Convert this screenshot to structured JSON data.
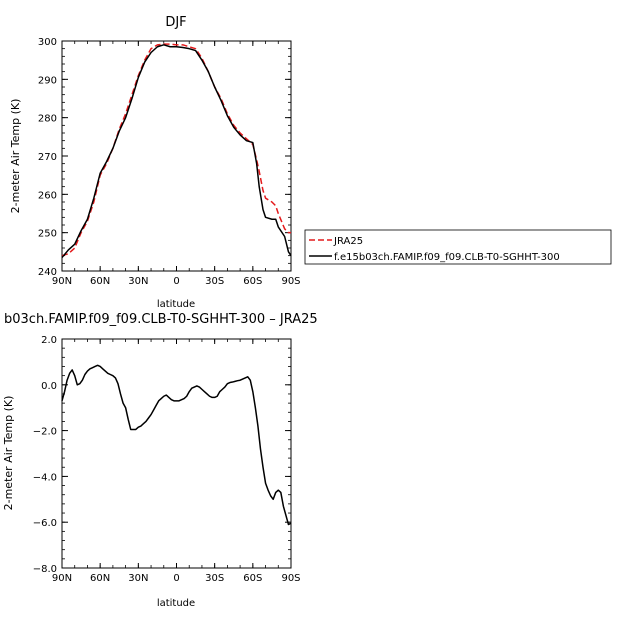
{
  "chart_data": [
    {
      "type": "line",
      "title": "DJF",
      "xlabel": "latitude",
      "ylabel": "2-meter Air Temp (K)",
      "xlim": [
        90,
        -90
      ],
      "ylim": [
        240,
        300
      ],
      "x_ticks": [
        90,
        60,
        30,
        0,
        -30,
        -60,
        -90
      ],
      "x_tick_labels": [
        "90N",
        "60N",
        "30N",
        "0",
        "30S",
        "60S",
        "90S"
      ],
      "y_ticks": [
        240,
        250,
        260,
        270,
        280,
        290,
        300
      ],
      "y_tick_labels": [
        "240",
        "250",
        "260",
        "270",
        "280",
        "290",
        "300"
      ],
      "legend": {
        "placement": "outside-right"
      },
      "series": [
        {
          "name": "JRA25",
          "color": "#e41a1c",
          "dash": "dashed",
          "x": [
            90,
            85,
            80,
            75,
            70,
            65,
            60,
            55,
            50,
            45,
            40,
            35,
            30,
            25,
            20,
            15,
            10,
            5,
            0,
            -5,
            -10,
            -15,
            -20,
            -25,
            -30,
            -35,
            -40,
            -45,
            -50,
            -55,
            -60,
            -63,
            -65,
            -68,
            -70,
            -75,
            -78,
            -80,
            -85,
            -88,
            -90
          ],
          "y": [
            244,
            244.5,
            246,
            250,
            253,
            258,
            265,
            268,
            272,
            277,
            281,
            286,
            291,
            295,
            298,
            299,
            299.2,
            299.2,
            299,
            299,
            298.5,
            298,
            295.5,
            292,
            288,
            285,
            281,
            278,
            276,
            274.5,
            273,
            269,
            266,
            261,
            259,
            258,
            257,
            255,
            251,
            250,
            250
          ]
        },
        {
          "name": "f.e15b03ch.FAMIP.f09_f09.CLB-T0-SGHHT-300",
          "color": "#000000",
          "dash": "solid",
          "x": [
            90,
            85,
            80,
            75,
            70,
            65,
            60,
            55,
            50,
            45,
            40,
            35,
            30,
            25,
            20,
            15,
            10,
            5,
            0,
            -5,
            -10,
            -15,
            -20,
            -25,
            -30,
            -35,
            -40,
            -45,
            -50,
            -55,
            -60,
            -63,
            -65,
            -68,
            -70,
            -75,
            -78,
            -80,
            -85,
            -88,
            -90
          ],
          "y": [
            243.5,
            245.5,
            247,
            250.5,
            253.5,
            259,
            265.5,
            268.5,
            272,
            276.5,
            280,
            285,
            290.5,
            294.5,
            297,
            298.5,
            299,
            298.5,
            298.5,
            298.3,
            298,
            297.5,
            295,
            292,
            288,
            284.5,
            280.5,
            277.5,
            275.5,
            274,
            273.5,
            268,
            262,
            256,
            254,
            253.5,
            253.5,
            251.5,
            249,
            245,
            244
          ]
        }
      ]
    },
    {
      "type": "line",
      "title": "b03ch.FAMIP.f09_f09.CLB-T0-SGHHT-300 – JRA25",
      "xlabel": "latitude",
      "ylabel": "2-meter Air Temp (K)",
      "xlim": [
        90,
        -90
      ],
      "ylim": [
        -8,
        2
      ],
      "x_ticks": [
        90,
        60,
        30,
        0,
        -30,
        -60,
        -90
      ],
      "x_tick_labels": [
        "90N",
        "60N",
        "30N",
        "0",
        "30S",
        "60S",
        "90S"
      ],
      "y_ticks": [
        -8,
        -6,
        -4,
        -2,
        0,
        2
      ],
      "y_tick_labels": [
        "−8.0",
        "−6.0",
        "−4.0",
        "−2.0",
        "0.0",
        "2.0"
      ],
      "series": [
        {
          "color": "#000000",
          "dash": "solid",
          "x": [
            90,
            88,
            86,
            84,
            82,
            80,
            78,
            76,
            74,
            72,
            70,
            68,
            66,
            64,
            62,
            60,
            58,
            56,
            54,
            52,
            50,
            48,
            46,
            44,
            42,
            40,
            38,
            36,
            34,
            32,
            30,
            28,
            26,
            24,
            22,
            20,
            18,
            16,
            14,
            12,
            10,
            8,
            6,
            4,
            2,
            0,
            -2,
            -4,
            -6,
            -8,
            -10,
            -12,
            -14,
            -16,
            -18,
            -20,
            -22,
            -24,
            -26,
            -28,
            -30,
            -32,
            -34,
            -36,
            -38,
            -40,
            -42,
            -44,
            -46,
            -48,
            -50,
            -52,
            -54,
            -56,
            -58,
            -60,
            -62,
            -64,
            -66,
            -68,
            -70,
            -72,
            -74,
            -76,
            -78,
            -80,
            -82,
            -84,
            -86,
            -88,
            -90
          ],
          "y": [
            -0.7,
            -0.3,
            0.2,
            0.5,
            0.65,
            0.4,
            0.0,
            0.05,
            0.2,
            0.45,
            0.6,
            0.7,
            0.75,
            0.8,
            0.85,
            0.8,
            0.7,
            0.6,
            0.5,
            0.45,
            0.4,
            0.3,
            0.05,
            -0.4,
            -0.8,
            -1.0,
            -1.5,
            -1.95,
            -1.95,
            -1.95,
            -1.85,
            -1.8,
            -1.7,
            -1.6,
            -1.45,
            -1.3,
            -1.1,
            -0.9,
            -0.7,
            -0.6,
            -0.5,
            -0.45,
            -0.55,
            -0.65,
            -0.7,
            -0.7,
            -0.7,
            -0.65,
            -0.6,
            -0.5,
            -0.3,
            -0.15,
            -0.1,
            -0.05,
            -0.1,
            -0.2,
            -0.3,
            -0.4,
            -0.5,
            -0.55,
            -0.55,
            -0.5,
            -0.3,
            -0.2,
            -0.1,
            0.05,
            0.1,
            0.12,
            0.15,
            0.18,
            0.2,
            0.25,
            0.3,
            0.35,
            0.2,
            -0.3,
            -1.0,
            -1.8,
            -2.8,
            -3.6,
            -4.3,
            -4.6,
            -4.85,
            -5.0,
            -4.7,
            -4.6,
            -4.7,
            -5.3,
            -5.7,
            -6.1,
            -6.05
          ]
        }
      ]
    }
  ]
}
